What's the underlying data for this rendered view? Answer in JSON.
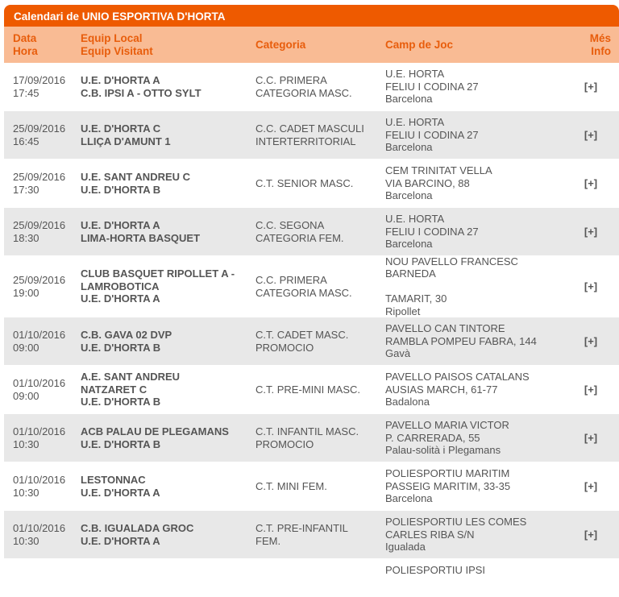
{
  "title": "Calendari de UNIO ESPORTIVA D'HORTA",
  "headers": {
    "date": "Data",
    "time": "Hora",
    "local": "Equip Local",
    "visitor": "Equip Visitant",
    "category": "Categoria",
    "venue": "Camp de Joc",
    "more1": "Més",
    "more2": "Info"
  },
  "more_label": "[+]",
  "rows": [
    {
      "date": "17/09/2016",
      "time": "17:45",
      "teams": [
        "U.E. D'HORTA A",
        "C.B. IPSI A - OTTO SYLT"
      ],
      "category": [
        "C.C. PRIMERA",
        "CATEGORIA MASC."
      ],
      "venue": [
        "U.E. HORTA",
        "FELIU I CODINA 27",
        "Barcelona"
      ]
    },
    {
      "date": "25/09/2016",
      "time": "16:45",
      "teams": [
        "U.E. D'HORTA C",
        "LLIÇA D'AMUNT 1"
      ],
      "category": [
        "C.C. CADET MASCULI",
        "INTERTERRITORIAL"
      ],
      "venue": [
        "U.E. HORTA",
        "FELIU I CODINA 27",
        "Barcelona"
      ]
    },
    {
      "date": "25/09/2016",
      "time": "17:30",
      "teams": [
        "U.E. SANT ANDREU C",
        "U.E. D'HORTA B"
      ],
      "category": [
        "C.T. SENIOR MASC."
      ],
      "venue": [
        "CEM TRINITAT VELLA",
        "VIA BARCINO, 88",
        "Barcelona"
      ]
    },
    {
      "date": "25/09/2016",
      "time": "18:30",
      "teams": [
        "U.E. D'HORTA A",
        "LIMA-HORTA BASQUET"
      ],
      "category": [
        "C.C. SEGONA",
        "CATEGORIA FEM."
      ],
      "venue": [
        "U.E. HORTA",
        "FELIU I CODINA 27",
        "Barcelona"
      ]
    },
    {
      "date": "25/09/2016",
      "time": "19:00",
      "teams": [
        "CLUB BASQUET RIPOLLET A -",
        "LAMROBOTICA",
        "U.E. D'HORTA A"
      ],
      "category": [
        "C.C. PRIMERA",
        "CATEGORIA MASC."
      ],
      "venue": [
        "NOU PAVELLO FRANCESC BARNEDA",
        "",
        "TAMARIT, 30",
        "Ripollet"
      ]
    },
    {
      "date": "01/10/2016",
      "time": "09:00",
      "teams": [
        "C.B. GAVA 02 DVP",
        "U.E. D'HORTA B"
      ],
      "category": [
        "C.T. CADET MASC.",
        "PROMOCIO"
      ],
      "venue": [
        "PAVELLO CAN TINTORE",
        "RAMBLA POMPEU FABRA, 144",
        "Gavà"
      ]
    },
    {
      "date": "01/10/2016",
      "time": "09:00",
      "teams": [
        "A.E. SANT ANDREU",
        "NATZARET C",
        "U.E. D'HORTA B"
      ],
      "category": [
        "C.T. PRE-MINI MASC."
      ],
      "venue": [
        "PAVELLO PAISOS CATALANS",
        "AUSIAS MARCH, 61-77",
        "Badalona"
      ]
    },
    {
      "date": "01/10/2016",
      "time": "10:30",
      "teams": [
        "ACB PALAU DE PLEGAMANS",
        "U.E. D'HORTA B"
      ],
      "category": [
        "C.T. INFANTIL MASC.",
        "PROMOCIO"
      ],
      "venue": [
        "PAVELLO MARIA VICTOR",
        "P. CARRERADA, 55",
        "Palau-solità i Plegamans"
      ]
    },
    {
      "date": "01/10/2016",
      "time": "10:30",
      "teams": [
        "LESTONNAC",
        "U.E. D'HORTA A"
      ],
      "category": [
        "C.T. MINI FEM."
      ],
      "venue": [
        "POLIESPORTIU MARITIM",
        "PASSEIG MARITIM, 33-35",
        "Barcelona"
      ]
    },
    {
      "date": "01/10/2016",
      "time": "10:30",
      "teams": [
        "C.B. IGUALADA GROC",
        "U.E. D'HORTA A"
      ],
      "category": [
        "C.T. PRE-INFANTIL",
        "FEM."
      ],
      "venue": [
        "POLIESPORTIU LES COMES",
        "CARLES RIBA S/N",
        "Igualada"
      ]
    },
    {
      "date": "",
      "time": "",
      "teams": [],
      "category": [],
      "venue": [
        "POLIESPORTIU IPSI"
      ]
    }
  ]
}
